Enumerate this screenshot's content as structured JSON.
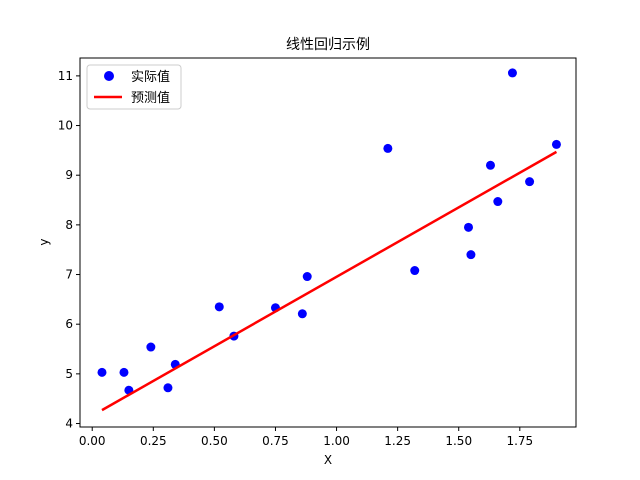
{
  "chart_data": {
    "type": "scatter",
    "title": "线性回归示例",
    "xlabel": "X",
    "ylabel": "y",
    "xlim": [
      -0.05,
      1.98
    ],
    "ylim": [
      3.93,
      11.36
    ],
    "xticks": [
      0.0,
      0.25,
      0.5,
      0.75,
      1.0,
      1.25,
      1.5,
      1.75
    ],
    "xtick_labels": [
      "0.00",
      "0.25",
      "0.50",
      "0.75",
      "1.00",
      "1.25",
      "1.50",
      "1.75"
    ],
    "yticks": [
      4,
      5,
      6,
      7,
      8,
      9,
      10,
      11
    ],
    "ytick_labels": [
      "4",
      "5",
      "6",
      "7",
      "8",
      "9",
      "10",
      "11"
    ],
    "grid": false,
    "legend_position": "top-left",
    "series": [
      {
        "name": "实际值",
        "kind": "scatter",
        "color": "#0000ff",
        "points": [
          {
            "x": 0.04,
            "y": 5.03
          },
          {
            "x": 0.13,
            "y": 5.03
          },
          {
            "x": 0.15,
            "y": 4.67
          },
          {
            "x": 0.24,
            "y": 5.54
          },
          {
            "x": 0.31,
            "y": 4.72
          },
          {
            "x": 0.34,
            "y": 5.19
          },
          {
            "x": 0.52,
            "y": 6.35
          },
          {
            "x": 0.58,
            "y": 5.76
          },
          {
            "x": 0.75,
            "y": 6.33
          },
          {
            "x": 0.86,
            "y": 6.21
          },
          {
            "x": 0.88,
            "y": 6.96
          },
          {
            "x": 1.21,
            "y": 9.54
          },
          {
            "x": 1.32,
            "y": 7.08
          },
          {
            "x": 1.54,
            "y": 7.95
          },
          {
            "x": 1.55,
            "y": 7.4
          },
          {
            "x": 1.63,
            "y": 9.2
          },
          {
            "x": 1.66,
            "y": 8.47
          },
          {
            "x": 1.72,
            "y": 11.06
          },
          {
            "x": 1.79,
            "y": 8.87
          },
          {
            "x": 1.9,
            "y": 9.62
          }
        ]
      },
      {
        "name": "预测值",
        "kind": "line",
        "color": "#ff0000",
        "points": [
          {
            "x": 0.04,
            "y": 4.27
          },
          {
            "x": 1.9,
            "y": 9.47
          }
        ]
      }
    ]
  }
}
